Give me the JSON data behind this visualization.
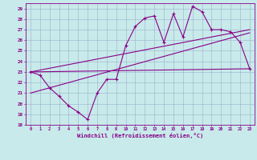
{
  "xlabel": "Windchill (Refroidissement éolien,°C)",
  "bg_color": "#c8eaea",
  "line_color": "#880088",
  "grid_color": "#99aacc",
  "xlim": [
    -0.5,
    23.5
  ],
  "ylim": [
    18,
    29.5
  ],
  "yticks": [
    18,
    19,
    20,
    21,
    22,
    23,
    24,
    25,
    26,
    27,
    28,
    29
  ],
  "xticks": [
    0,
    1,
    2,
    3,
    4,
    5,
    6,
    7,
    8,
    9,
    10,
    11,
    12,
    13,
    14,
    15,
    16,
    17,
    18,
    19,
    20,
    21,
    22,
    23
  ],
  "main_x": [
    0,
    1,
    2,
    3,
    4,
    5,
    6,
    7,
    8,
    9,
    10,
    11,
    12,
    13,
    14,
    15,
    16,
    17,
    18,
    19,
    20,
    21,
    22,
    23
  ],
  "main_y": [
    23.0,
    22.7,
    21.5,
    20.7,
    19.8,
    19.2,
    18.5,
    21.0,
    22.3,
    22.3,
    25.5,
    27.3,
    28.1,
    28.3,
    25.8,
    28.5,
    26.3,
    29.2,
    28.7,
    27.0,
    27.0,
    26.8,
    25.8,
    23.3
  ],
  "trend1_x": [
    0,
    23
  ],
  "trend1_y": [
    23.0,
    27.0
  ],
  "trend2_x": [
    0,
    23
  ],
  "trend2_y": [
    23.0,
    23.3
  ],
  "trend3_x": [
    0,
    23
  ],
  "trend3_y": [
    21.0,
    26.7
  ]
}
